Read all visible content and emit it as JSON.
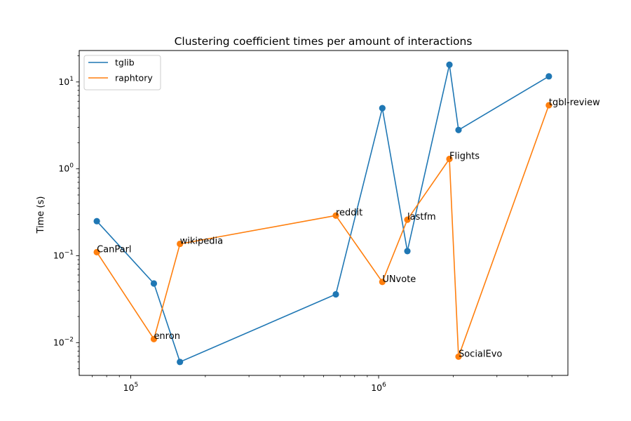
{
  "chart_data": {
    "type": "line",
    "title": "Clustering coefficient times per amount of interactions",
    "xlabel": "",
    "ylabel": "Time (s)",
    "xscale": "log",
    "yscale": "log",
    "xlim": [
      62000,
      5800000
    ],
    "ylim": [
      0.0042,
      23
    ],
    "x_ticks": [
      {
        "value": 100000,
        "base": "10",
        "exp": "5"
      },
      {
        "value": 1000000,
        "base": "10",
        "exp": "6"
      }
    ],
    "y_ticks": [
      {
        "value": 0.01,
        "base": "10",
        "exp": "−2"
      },
      {
        "value": 0.1,
        "base": "10",
        "exp": "−1"
      },
      {
        "value": 1,
        "base": "10",
        "exp": "0"
      },
      {
        "value": 10,
        "base": "10",
        "exp": "1"
      }
    ],
    "legend_position": "top-left",
    "grid": false,
    "series": [
      {
        "name": "tglib",
        "color": "#1f77b4",
        "points": [
          [
            73000,
            0.25
          ],
          [
            124000,
            0.048
          ],
          [
            158000,
            0.006
          ],
          [
            672000,
            0.036
          ],
          [
            1035000,
            5.0
          ],
          [
            1306000,
            0.113
          ],
          [
            1930000,
            15.8
          ],
          [
            2100000,
            2.8
          ],
          [
            4860000,
            11.6
          ]
        ]
      },
      {
        "name": "raphtory",
        "color": "#ff7f0e",
        "points": [
          [
            73000,
            0.11
          ],
          [
            124000,
            0.011
          ],
          [
            158000,
            0.137
          ],
          [
            672000,
            0.29
          ],
          [
            1035000,
            0.05
          ],
          [
            1306000,
            0.26
          ],
          [
            1930000,
            1.3
          ],
          [
            2100000,
            0.0069
          ],
          [
            4860000,
            5.4
          ]
        ]
      }
    ],
    "annotations": [
      {
        "text": "CanParl",
        "x": 73000,
        "y": 0.11
      },
      {
        "text": "enron",
        "x": 124000,
        "y": 0.011
      },
      {
        "text": "wikipedia",
        "x": 158000,
        "y": 0.137
      },
      {
        "text": "reddit",
        "x": 672000,
        "y": 0.29
      },
      {
        "text": "UNvote",
        "x": 1035000,
        "y": 0.05
      },
      {
        "text": "lastfm",
        "x": 1306000,
        "y": 0.26
      },
      {
        "text": "Flights",
        "x": 1930000,
        "y": 1.3
      },
      {
        "text": "SocialEvo",
        "x": 2100000,
        "y": 0.0069
      },
      {
        "text": "tgbl-review",
        "x": 4860000,
        "y": 5.4
      }
    ]
  }
}
